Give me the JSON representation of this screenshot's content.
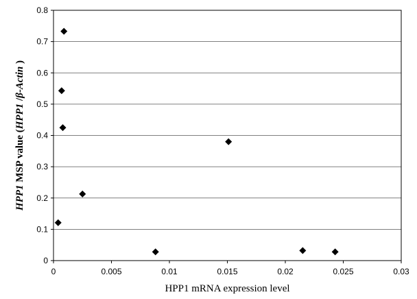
{
  "chart_data": {
    "type": "scatter",
    "xlabel": "HPP1 mRNA expression level",
    "ylabel": {
      "part1": "HPP1",
      "part2": " MSP value (",
      "part3": "HPP1",
      "part4": " /",
      "part5": "β",
      "part6": "-Actin",
      "part7": " )"
    },
    "xlim": [
      0,
      0.03
    ],
    "ylim": [
      0,
      0.8
    ],
    "x_ticks": [
      "0",
      "0.005",
      "0.01",
      "0.015",
      "0.02",
      "0.025",
      "0.03"
    ],
    "y_ticks": [
      "0",
      "0.1",
      "0.2",
      "0.3",
      "0.4",
      "0.5",
      "0.6",
      "0.7",
      "0.8"
    ],
    "grid": "horizontal",
    "marker": "diamond",
    "color": "#000000",
    "points": [
      {
        "x": 0.0009,
        "y": 0.733
      },
      {
        "x": 0.0007,
        "y": 0.543
      },
      {
        "x": 0.0008,
        "y": 0.425
      },
      {
        "x": 0.0025,
        "y": 0.213
      },
      {
        "x": 0.0004,
        "y": 0.121
      },
      {
        "x": 0.0088,
        "y": 0.028
      },
      {
        "x": 0.0151,
        "y": 0.38
      },
      {
        "x": 0.0215,
        "y": 0.032
      },
      {
        "x": 0.0243,
        "y": 0.028
      }
    ]
  }
}
